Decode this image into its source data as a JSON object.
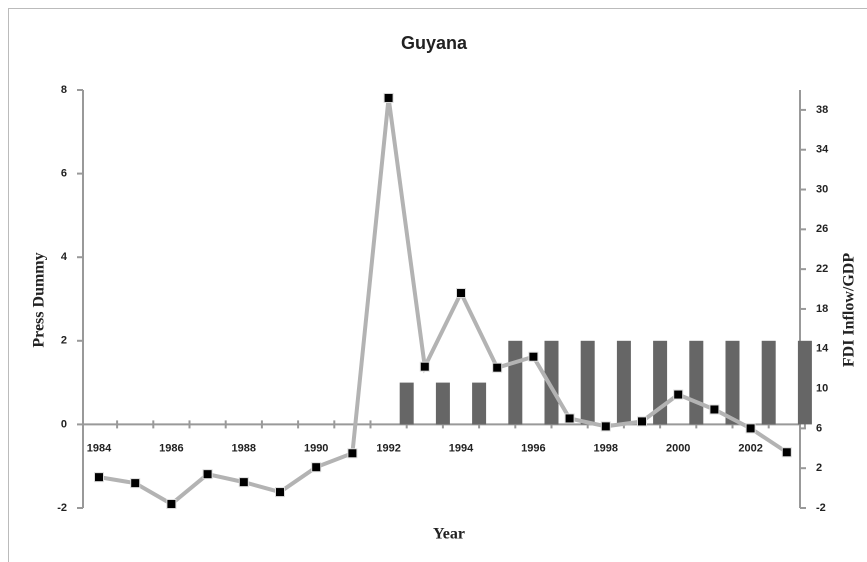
{
  "chart_data": {
    "type": "bar",
    "title": "Guyana",
    "x_label": "Year",
    "y_label": "Press Dummy",
    "y2_label": "FDI Inflow/GDP",
    "categories": [
      "1984",
      null,
      "1986",
      null,
      "1988",
      null,
      "1990",
      null,
      "1992",
      null,
      "1994",
      null,
      "1996",
      null,
      "1998",
      null,
      "2000",
      null,
      "2002",
      null
    ],
    "series": [
      {
        "type": "bar",
        "color": "#666666",
        "values": [
          0,
          0,
          0,
          0,
          0,
          0,
          0,
          0,
          1,
          1,
          1,
          2,
          2,
          2,
          2,
          2,
          2,
          2,
          2,
          2
        ]
      },
      {
        "type": "line",
        "axis": "y2",
        "color": "#b3b3b3",
        "marker_color": "#000000",
        "values": [
          1.1,
          0.5,
          -1.6,
          1.4,
          0.6,
          -0.4,
          2.1,
          3.5,
          39.2,
          12.2,
          19.6,
          12.1,
          13.2,
          7.0,
          6.2,
          6.7,
          9.4,
          7.9,
          6.0,
          3.6
        ]
      }
    ],
    "ylim": [
      -2,
      8
    ],
    "yticks": [
      -2,
      0,
      2,
      4,
      6,
      8
    ],
    "y2lim": [
      -2,
      40
    ],
    "y2ticks": [
      -2,
      2,
      6,
      10,
      14,
      18,
      22,
      26,
      30,
      34,
      38
    ]
  }
}
